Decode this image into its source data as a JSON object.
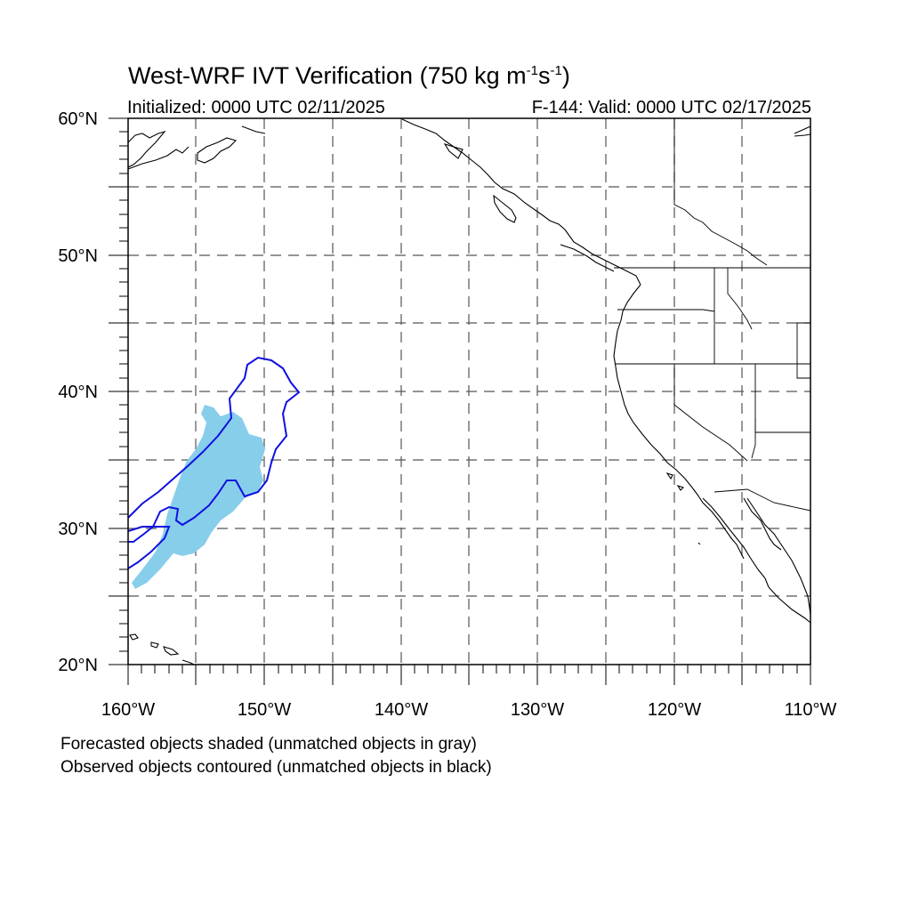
{
  "header": {
    "title_prefix": "West-WRF IVT Verification (750 kg m",
    "title_exp1": "-1",
    "title_mid": "s",
    "title_exp2": "-1",
    "title_suffix": ")",
    "init_text": "Initialized: 0000 UTC 02/11/2025",
    "valid_text": "F-144: Valid: 0000 UTC 02/17/2025"
  },
  "axes": {
    "lat_labels": [
      "20°N",
      "30°N",
      "40°N",
      "50°N",
      "60°N"
    ],
    "lon_labels": [
      "160°W",
      "150°W",
      "140°W",
      "130°W",
      "120°W",
      "110°W"
    ],
    "lat_range": [
      20,
      60
    ],
    "lon_range": [
      -160,
      -110
    ]
  },
  "legend": {
    "line1": "Forecasted objects shaded (unmatched objects in gray)",
    "line2": "Observed objects contoured (unmatched objects in black)"
  },
  "colors": {
    "forecast_fill": "#87ceeb",
    "observed_contour": "#1010e0",
    "coastline": "#000000",
    "grid": "#555555"
  }
}
